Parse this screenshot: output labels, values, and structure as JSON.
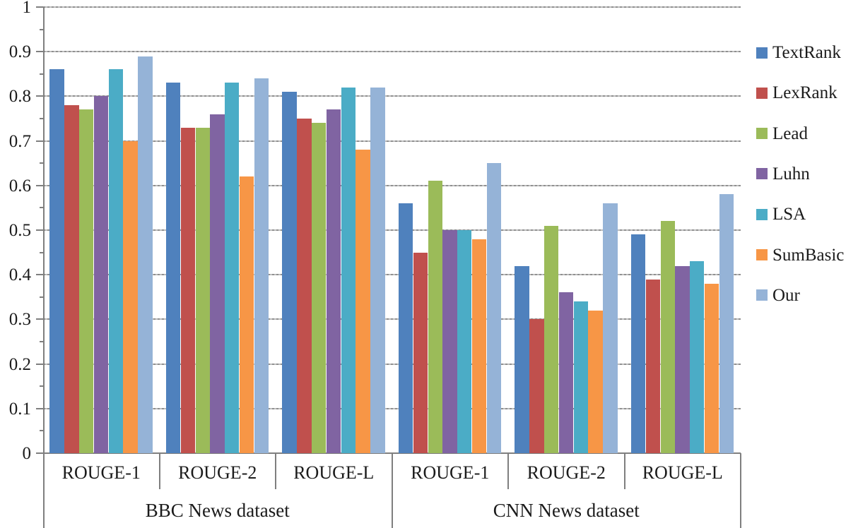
{
  "chart_data": {
    "type": "bar",
    "title": "",
    "grid": true,
    "legend_position": "right",
    "y_axis": {
      "min": 0,
      "max": 1,
      "major_step": 0.1,
      "minor_step": 0.05,
      "tick_labels": [
        "0",
        "0.1",
        "0.2",
        "0.3",
        "0.4",
        "0.5",
        "0.6",
        "0.7",
        "0.8",
        "0.9",
        "1"
      ]
    },
    "categories": [
      "ROUGE-1",
      "ROUGE-2",
      "ROUGE-L",
      "ROUGE-1",
      "ROUGE-2",
      "ROUGE-L"
    ],
    "category_groups": [
      {
        "label": "BBC News dataset",
        "start": 0,
        "end": 3
      },
      {
        "label": "CNN News dataset",
        "start": 3,
        "end": 6
      }
    ],
    "series": [
      {
        "name": "TextRank",
        "color": "#4F81BD",
        "values": [
          0.86,
          0.83,
          0.81,
          0.56,
          0.42,
          0.49
        ]
      },
      {
        "name": "LexRank",
        "color": "#C0504D",
        "values": [
          0.78,
          0.73,
          0.75,
          0.45,
          0.3,
          0.39
        ]
      },
      {
        "name": "Lead",
        "color": "#9BBB59",
        "values": [
          0.77,
          0.73,
          0.74,
          0.61,
          0.51,
          0.52
        ]
      },
      {
        "name": "Luhn",
        "color": "#8064A2",
        "values": [
          0.8,
          0.76,
          0.77,
          0.5,
          0.36,
          0.42
        ]
      },
      {
        "name": "LSA",
        "color": "#4BACC6",
        "values": [
          0.86,
          0.83,
          0.82,
          0.5,
          0.34,
          0.43
        ]
      },
      {
        "name": "SumBasic",
        "color": "#F79646",
        "values": [
          0.7,
          0.62,
          0.68,
          0.48,
          0.32,
          0.38
        ]
      },
      {
        "name": "Our",
        "color": "#95B3D7",
        "values": [
          0.89,
          0.84,
          0.82,
          0.65,
          0.56,
          0.58
        ]
      }
    ]
  },
  "colors": {
    "background": "#FFFFFF",
    "axis": "#7F7F7F",
    "gridline": "#9A9A9A",
    "text": "#1B1B1B"
  }
}
